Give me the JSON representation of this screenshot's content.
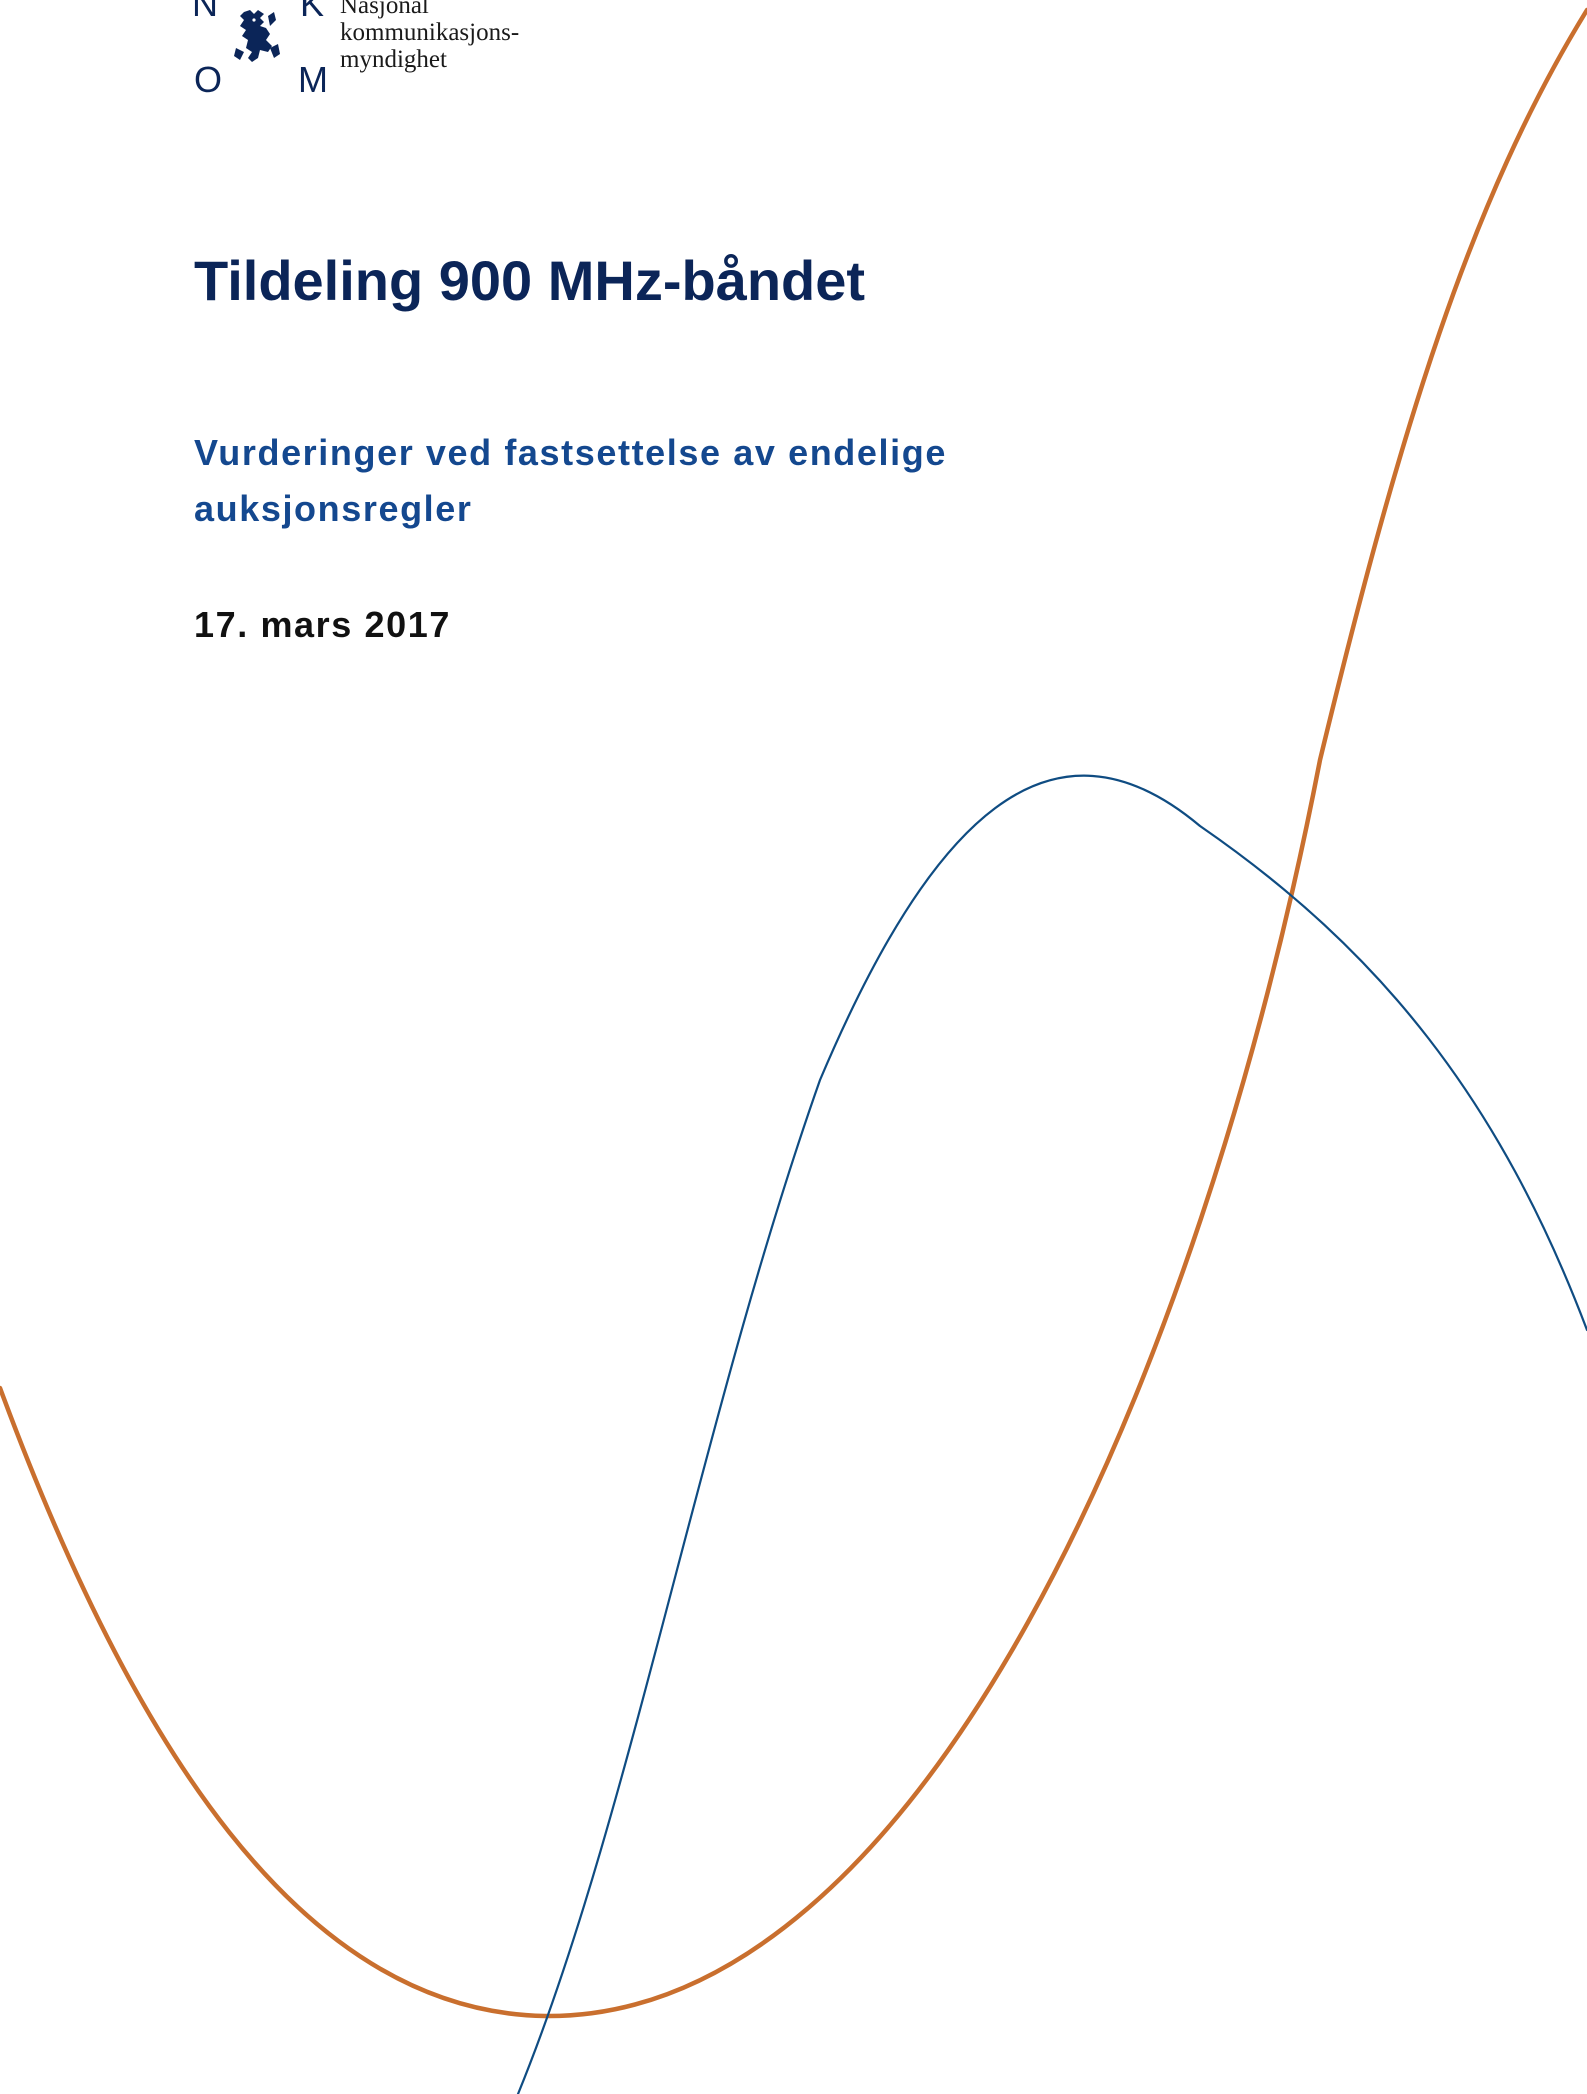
{
  "logo": {
    "letters": [
      "N",
      "K",
      "O",
      "M"
    ],
    "emblem": "lion-coat-of-arms-icon"
  },
  "organization": {
    "line1": "Nasjonal",
    "line2": "kommunikasjons-",
    "line3": "myndighet"
  },
  "document": {
    "title": "Tildeling 900 MHz-båndet",
    "subtitle_line1": "Vurderinger ved fastsettelse av endelige",
    "subtitle_line2": "auksjonsregler",
    "date": "17. mars 2017"
  },
  "colors": {
    "navy": "#0b2558",
    "blue": "#14488f",
    "orange_curve": "#c96f2e",
    "blue_curve": "#0f4c82"
  }
}
